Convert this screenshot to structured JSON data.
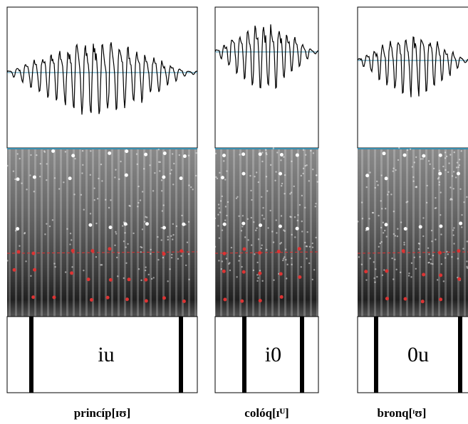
{
  "panels": [
    {
      "label": "iu",
      "caption": "princíp[ɪʊ]"
    },
    {
      "label": "i0",
      "caption": "colóq[ɪᵁ]"
    },
    {
      "label": "0u",
      "caption": "bronq[ᶦʊ]"
    }
  ]
}
